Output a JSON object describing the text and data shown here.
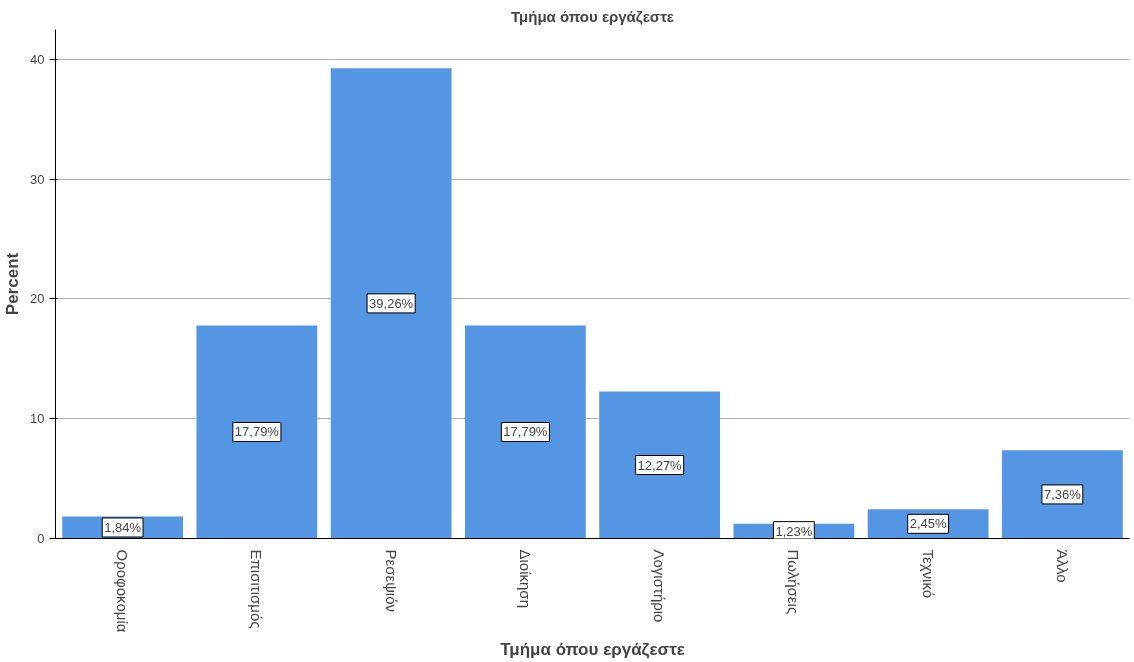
{
  "chart_data": {
    "type": "bar",
    "title": "Τμήμα όπου εργάζεστε",
    "xlabel": "Τμήμα όπου εργάζεστε",
    "ylabel": "Percent",
    "categories": [
      "Οροφοκομία",
      "Επισιτισμός",
      "Ρεσεψιόν",
      "Διοίκηση",
      "Λογιστήριο",
      "Πωλήσεις",
      "Τεχνικό",
      "Άλλο"
    ],
    "values": [
      1.84,
      17.79,
      39.26,
      17.79,
      12.27,
      1.23,
      2.45,
      7.36
    ],
    "value_labels": [
      "1,84%",
      "17,79%",
      "39,26%",
      "17,79%",
      "12,27%",
      "1,23%",
      "2,45%",
      "7,36%"
    ],
    "color": "#5596e4",
    "ylim": [
      0,
      42.5
    ],
    "yticks": [
      0,
      10,
      20,
      30,
      40
    ],
    "grid": "y"
  }
}
